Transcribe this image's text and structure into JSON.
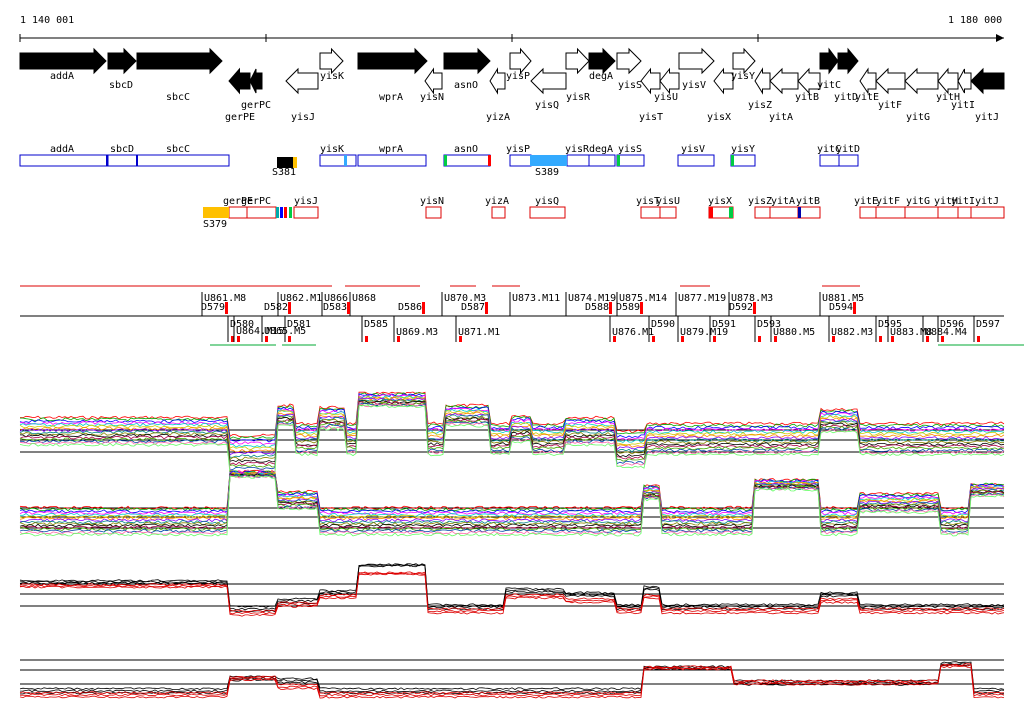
{
  "ruler": {
    "start_label": "1 140 001",
    "end_label": "1 180 000"
  },
  "gene_arrows": [
    {
      "label": "addA",
      "dir": "+",
      "filled": true
    },
    {
      "label": "sbcD",
      "dir": "+",
      "filled": true
    },
    {
      "label": "sbcC",
      "dir": "+",
      "filled": true
    },
    {
      "label": "gerPC",
      "dir": "-",
      "filled": true
    },
    {
      "label": "gerPE",
      "dir": "-",
      "filled": true
    },
    {
      "label": "yisJ",
      "dir": "-",
      "filled": false
    },
    {
      "label": "yisK",
      "dir": "+",
      "filled": false
    },
    {
      "label": "wprA",
      "dir": "+",
      "filled": true
    },
    {
      "label": "yisN",
      "dir": "-",
      "filled": false
    },
    {
      "label": "asnO",
      "dir": "+",
      "filled": true
    },
    {
      "label": "yizA",
      "dir": "-",
      "filled": false
    },
    {
      "label": "yisP",
      "dir": "+",
      "filled": false
    },
    {
      "label": "yisQ",
      "dir": "-",
      "filled": false
    },
    {
      "label": "yisR",
      "dir": "+",
      "filled": false
    },
    {
      "label": "degA",
      "dir": "+",
      "filled": true
    },
    {
      "label": "yisS",
      "dir": "+",
      "filled": false
    },
    {
      "label": "yisT",
      "dir": "-",
      "filled": false
    },
    {
      "label": "yisU",
      "dir": "-",
      "filled": false
    },
    {
      "label": "yisV",
      "dir": "+",
      "filled": false
    },
    {
      "label": "yisX",
      "dir": "-",
      "filled": false
    },
    {
      "label": "yisY",
      "dir": "+",
      "filled": false
    },
    {
      "label": "yisZ",
      "dir": "-",
      "filled": false
    },
    {
      "label": "yitA",
      "dir": "-",
      "filled": false
    },
    {
      "label": "yitB",
      "dir": "-",
      "filled": false
    },
    {
      "label": "yitC",
      "dir": "+",
      "filled": true
    },
    {
      "label": "yitD",
      "dir": "+",
      "filled": true
    },
    {
      "label": "yitE",
      "dir": "-",
      "filled": false
    },
    {
      "label": "yitF",
      "dir": "-",
      "filled": false
    },
    {
      "label": "yitG",
      "dir": "-",
      "filled": false
    },
    {
      "label": "yitH",
      "dir": "-",
      "filled": false
    },
    {
      "label": "yitI",
      "dir": "-",
      "filled": false
    },
    {
      "label": "yitJ",
      "dir": "-",
      "filled": true
    }
  ],
  "forward_boxes": [
    {
      "label": "addA"
    },
    {
      "label": "sbcD"
    },
    {
      "label": "sbcC"
    },
    {
      "label": "yisK"
    },
    {
      "label": "wprA"
    },
    {
      "label": "asnO"
    },
    {
      "label": "yisP"
    },
    {
      "label": "yisR"
    },
    {
      "label": "degA"
    },
    {
      "label": "yisS"
    },
    {
      "label": "yisV"
    },
    {
      "label": "yisY"
    },
    {
      "label": "yitC"
    },
    {
      "label": "yitD"
    }
  ],
  "reverse_boxes": [
    {
      "label": "gerPE"
    },
    {
      "label": "gerPC"
    },
    {
      "label": "yisJ"
    },
    {
      "label": "yisN"
    },
    {
      "label": "yizA"
    },
    {
      "label": "yisQ"
    },
    {
      "label": "yisT"
    },
    {
      "label": "yisU"
    },
    {
      "label": "yisX"
    },
    {
      "label": "yisZ"
    },
    {
      "label": "yitA"
    },
    {
      "label": "yitB"
    },
    {
      "label": "yitE"
    },
    {
      "label": "yitF"
    },
    {
      "label": "yitG"
    },
    {
      "label": "yitH"
    },
    {
      "label": "yitI"
    },
    {
      "label": "yitJ"
    }
  ],
  "segments": [
    {
      "label": "S381",
      "color": "#000000"
    },
    {
      "label": "S389",
      "color": "#33aaff"
    },
    {
      "label": "S379",
      "color": "#ffc000"
    }
  ],
  "upper_features": [
    "U861.M8",
    "U862.M1",
    "U866",
    "U868",
    "U870.M3",
    "U873.M11",
    "U874.M19",
    "U875.M14",
    "U877.M19",
    "U878.M3",
    "U881.M5"
  ],
  "upper_down_features": [
    "D579",
    "D582",
    "D583",
    "D586",
    "D587",
    "D588",
    "D589",
    "D592",
    "D594"
  ],
  "lower_features": [
    "D580",
    "U864.M15",
    "U865.M5",
    "D581",
    "D585",
    "U869.M3",
    "U871.M1",
    "U876.M1",
    "D590",
    "U879.M19",
    "D591",
    "D593",
    "U880.M5",
    "U882.M3",
    "D595",
    "U883.M8",
    "U884.M4",
    "D596",
    "D597"
  ],
  "colors": {
    "filled_arrow": "#000000",
    "box_forward": "#0000cc",
    "box_reverse": "#dd0000",
    "feature_line": "#000000",
    "feature_mark": "#ff0000",
    "profile_red": "#dd0000",
    "profile_black": "#000000"
  },
  "panels": [
    "expression-panel-1",
    "expression-panel-2",
    "expression-panel-3",
    "expression-panel-4"
  ]
}
